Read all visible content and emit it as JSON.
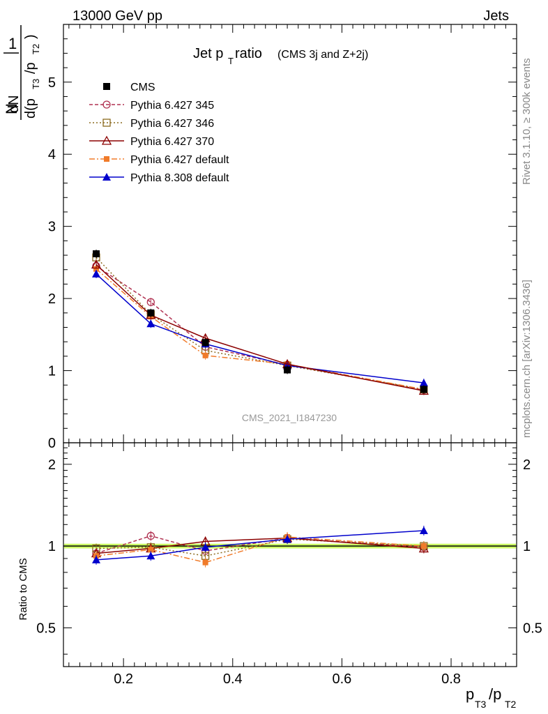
{
  "header": {
    "left": "13000 GeV pp",
    "right": "Jets"
  },
  "side_text": {
    "rivet": "Rivet 3.1.10, ≥ 300k events",
    "mcplots": "mcplots.cern.ch [arXiv:1306.3436]"
  },
  "plot_title": {
    "main": "Jet p",
    "sub": "T",
    "rest": " ratio",
    "small": "(CMS 3j and Z+2j)"
  },
  "watermark": "CMS_2021_I1847230",
  "ylabel_top": {
    "one": "1",
    "N": "N",
    "dN": "dN",
    "d": "d(p",
    "t3": "T3",
    "slash": "/p",
    "t2": "T2",
    "close": ")"
  },
  "ylabel_bottom": "Ratio to CMS",
  "xlabel": {
    "p1": "p",
    "s1": "T3",
    "slash": "/p",
    "s2": "T2"
  },
  "chart_data": [
    {
      "type": "line",
      "panel": "main",
      "x": [
        0.15,
        0.25,
        0.35,
        0.5,
        0.75
      ],
      "xlim": [
        0.09,
        0.92
      ],
      "ylim": [
        0,
        5.8
      ],
      "yticks": [
        "0",
        "1",
        "2",
        "3",
        "4",
        "5"
      ],
      "series": [
        {
          "name": "CMS",
          "values": [
            2.62,
            1.8,
            1.39,
            1.01,
            0.74
          ],
          "color": "#000000",
          "marker": "filled-square",
          "dash": ""
        },
        {
          "name": "Pythia 6.427 345",
          "values": [
            2.45,
            1.95,
            1.33,
            1.08,
            0.73
          ],
          "color": "#b03050",
          "marker": "open-circle",
          "dash": "5,3"
        },
        {
          "name": "Pythia 6.427 346",
          "values": [
            2.57,
            1.78,
            1.28,
            1.07,
            0.74
          ],
          "color": "#8b6a1e",
          "marker": "open-square",
          "dash": "2,3"
        },
        {
          "name": "Pythia 6.427 370",
          "values": [
            2.47,
            1.77,
            1.45,
            1.09,
            0.72
          ],
          "color": "#8b0000",
          "marker": "open-triangle",
          "dash": ""
        },
        {
          "name": "Pythia 6.427 default",
          "values": [
            2.41,
            1.75,
            1.21,
            1.09,
            0.74
          ],
          "color": "#f07b2a",
          "marker": "filled-square-small",
          "dash": "8,3,2,3"
        },
        {
          "name": "Pythia 8.308 default",
          "values": [
            2.34,
            1.65,
            1.37,
            1.07,
            0.83
          ],
          "color": "#0000cc",
          "marker": "filled-triangle",
          "dash": ""
        }
      ]
    },
    {
      "type": "line",
      "panel": "ratio",
      "x": [
        0.15,
        0.25,
        0.35,
        0.5,
        0.75
      ],
      "xlim": [
        0.09,
        0.92
      ],
      "ylim": [
        0.36,
        2.4
      ],
      "yticks": [
        "0.5",
        "1",
        "2"
      ],
      "xticks": [
        "0.2",
        "0.4",
        "0.6",
        "0.8"
      ],
      "reference_band": {
        "center": 1.0,
        "half_width": 0.02,
        "color": "#ccff66"
      },
      "series": [
        {
          "name": "Pythia 6.427 345",
          "values": [
            0.94,
            1.09,
            0.96,
            1.07,
            0.99
          ],
          "color": "#b03050"
        },
        {
          "name": "Pythia 6.427 346",
          "values": [
            0.98,
            0.99,
            0.92,
            1.06,
            1.0
          ],
          "color": "#8b6a1e"
        },
        {
          "name": "Pythia 6.427 370",
          "values": [
            0.94,
            0.98,
            1.04,
            1.07,
            0.98
          ],
          "color": "#8b0000"
        },
        {
          "name": "Pythia 6.427 default",
          "values": [
            0.92,
            0.97,
            0.87,
            1.08,
            1.0
          ],
          "color": "#f07b2a"
        },
        {
          "name": "Pythia 8.308 default",
          "values": [
            0.89,
            0.92,
            0.99,
            1.06,
            1.14
          ],
          "color": "#0000cc"
        }
      ]
    }
  ]
}
